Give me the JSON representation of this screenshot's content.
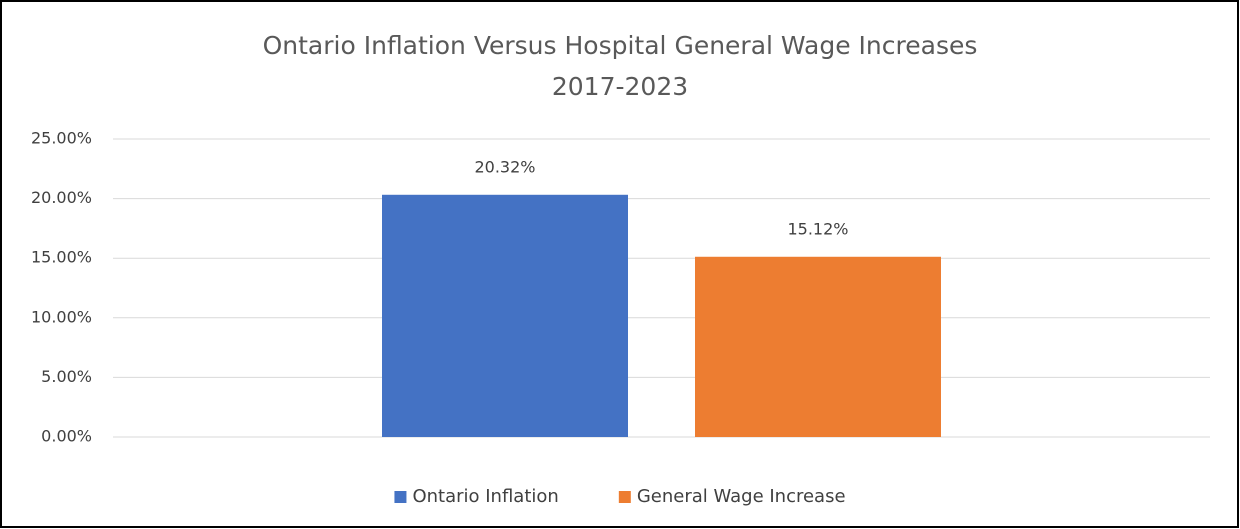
{
  "chart_data": {
    "type": "bar",
    "title": [
      "Ontario Inflation Versus Hospital General Wage Increases",
      "2017-2023"
    ],
    "categories": [
      null
    ],
    "series": [
      {
        "name": "Ontario Inflation",
        "color": "#4472c4",
        "values": [
          20.32
        ],
        "value_labels": [
          "20.32%"
        ]
      },
      {
        "name": "General Wage Increase",
        "color": "#ed7d31",
        "values": [
          15.12
        ],
        "value_labels": [
          "15.12%"
        ]
      }
    ],
    "ylim": [
      0,
      25
    ],
    "yticks": [
      {
        "value": 0,
        "label": "0.00%"
      },
      {
        "value": 5,
        "label": "5.00%"
      },
      {
        "value": 10,
        "label": "10.00%"
      },
      {
        "value": 15,
        "label": "15.00%"
      },
      {
        "value": 20,
        "label": "20.00%"
      },
      {
        "value": 25,
        "label": "25.00%"
      }
    ],
    "grid": true,
    "legend": "bottom"
  }
}
